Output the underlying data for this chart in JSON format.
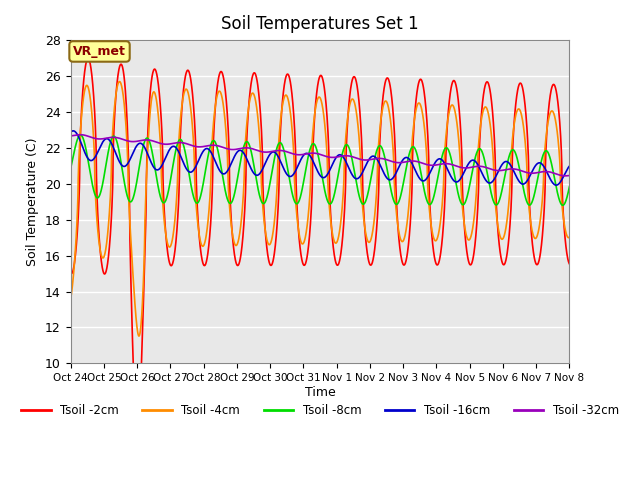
{
  "title": "Soil Temperatures Set 1",
  "xlabel": "Time",
  "ylabel": "Soil Temperature (C)",
  "ylim": [
    10,
    28
  ],
  "yticks": [
    10,
    12,
    14,
    16,
    18,
    20,
    22,
    24,
    26,
    28
  ],
  "x_labels": [
    "Oct 24",
    "Oct 25",
    "Oct 26",
    "Oct 27",
    "Oct 28",
    "Oct 29",
    "Oct 30",
    "Oct 31",
    "Nov 1",
    "Nov 2",
    "Nov 3",
    "Nov 4",
    "Nov 5",
    "Nov 6",
    "Nov 7",
    "Nov 8"
  ],
  "vr_met_label": "VR_met",
  "series": {
    "Tsoil -2cm": {
      "color": "#FF0000",
      "linewidth": 1.2
    },
    "Tsoil -4cm": {
      "color": "#FF8C00",
      "linewidth": 1.2
    },
    "Tsoil -8cm": {
      "color": "#00DD00",
      "linewidth": 1.2
    },
    "Tsoil -16cm": {
      "color": "#0000CC",
      "linewidth": 1.2
    },
    "Tsoil -32cm": {
      "color": "#9900BB",
      "linewidth": 1.2
    }
  },
  "bg_color": "#E8E8E8",
  "fig_color": "#FFFFFF",
  "grid_color": "#FFFFFF",
  "n_days": 15,
  "samples_per_day": 144
}
